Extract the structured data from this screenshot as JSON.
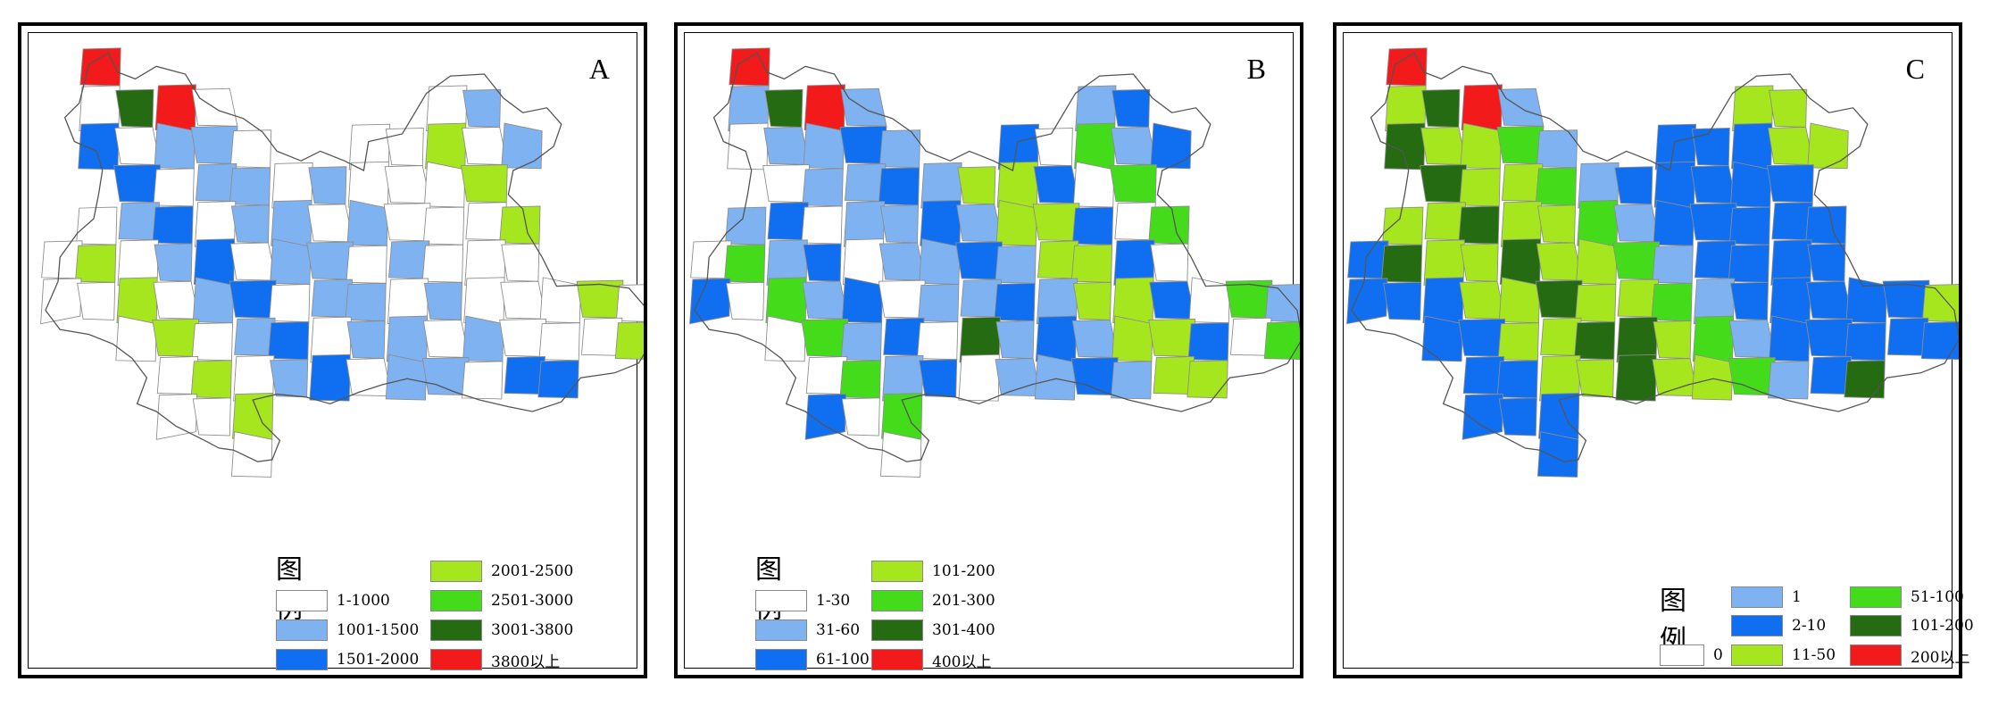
{
  "colors": {
    "white": "#ffffff",
    "light_blue": "#7fb2f0",
    "blue": "#0f6ff0",
    "yellow_green": "#a6e61e",
    "green": "#44dc1a",
    "dark_green": "#246b12",
    "red": "#f21a1a",
    "border": "#8c8c8c"
  },
  "panels": [
    {
      "letter": "A",
      "legend_title": "图例",
      "legend": [
        {
          "label": "1-1000",
          "color": "#ffffff"
        },
        {
          "label": "1001-1500",
          "color": "#7fb2f0"
        },
        {
          "label": "1501-2000",
          "color": "#0f6ff0"
        },
        {
          "label": "2001-2500",
          "color": "#a6e61e"
        },
        {
          "label": "2501-3000",
          "color": "#44dc1a"
        },
        {
          "label": "3001-3800",
          "color": "#246b12"
        },
        {
          "label": "3800以上",
          "color": "#f21a1a"
        }
      ]
    },
    {
      "letter": "B",
      "legend_title": "图例",
      "legend": [
        {
          "label": "1-30",
          "color": "#ffffff"
        },
        {
          "label": "31-60",
          "color": "#7fb2f0"
        },
        {
          "label": "61-100",
          "color": "#0f6ff0"
        },
        {
          "label": "101-200",
          "color": "#a6e61e"
        },
        {
          "label": "201-300",
          "color": "#44dc1a"
        },
        {
          "label": "301-400",
          "color": "#246b12"
        },
        {
          "label": "400以上",
          "color": "#f21a1a"
        }
      ]
    },
    {
      "letter": "C",
      "legend_title": "图例",
      "legend": [
        {
          "label": "0",
          "color": "#ffffff"
        },
        {
          "label": "1",
          "color": "#7fb2f0"
        },
        {
          "label": "2-10",
          "color": "#0f6ff0"
        },
        {
          "label": "11-50",
          "color": "#a6e61e"
        },
        {
          "label": "51-100",
          "color": "#44dc1a"
        },
        {
          "label": "101-200",
          "color": "#246b12"
        },
        {
          "label": "200以上",
          "color": "#f21a1a"
        }
      ]
    }
  ]
}
